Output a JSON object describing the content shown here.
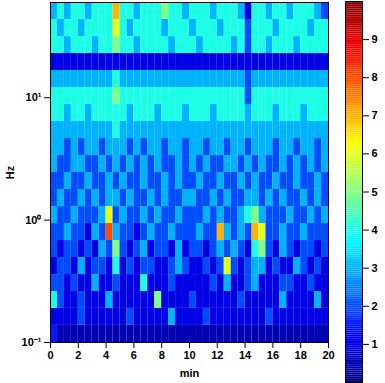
{
  "chart_data": {
    "type": "heatmap",
    "x_label": "min",
    "y_label": "Hz",
    "log": "y",
    "color": "jet",
    "xlim": [
      0,
      20
    ],
    "xticks": [
      0,
      2,
      4,
      6,
      8,
      10,
      12,
      14,
      16,
      18,
      20
    ],
    "ylim": [
      0.1,
      60
    ],
    "yticks": [
      {
        "value": 0.1,
        "label": "10⁻¹"
      },
      {
        "value": 1,
        "label": "10⁰"
      },
      {
        "value": 10,
        "label": "10¹"
      }
    ],
    "x_edges": [
      0,
      0.5,
      1,
      1.5,
      2,
      2.5,
      3,
      3.5,
      4,
      4.5,
      5,
      5.5,
      6,
      6.5,
      7,
      7.5,
      8,
      8.5,
      9,
      9.5,
      10,
      10.5,
      11,
      11.5,
      12,
      12.5,
      13,
      13.5,
      14,
      14.5,
      15,
      15.5,
      16,
      16.5,
      17,
      17.5,
      18,
      18.5,
      19,
      19.5,
      20
    ],
    "y_edges": [
      0.1,
      0.138,
      0.19,
      0.261,
      0.359,
      0.495,
      0.681,
      0.938,
      1.29,
      1.78,
      2.45,
      3.37,
      4.64,
      6.39,
      8.8,
      12.1,
      16.7,
      23.0,
      31.6,
      43.6,
      60
    ],
    "cells": [
      [
        1.5,
        0.5,
        0.5,
        0.5,
        0.5,
        0.5,
        0.5,
        0.5,
        0.5,
        0.5,
        0.5,
        0.5,
        0.5,
        0.5,
        0.5,
        0.5,
        0.5,
        0.5,
        0.5,
        0.5,
        0.5,
        0.5,
        0.5,
        0.5,
        0.5,
        0.5,
        0.5,
        0.5,
        0.5,
        0.5,
        0.5,
        0.5,
        0.5,
        0.5,
        0.5,
        0.5,
        0.5,
        0.5,
        0.5,
        0.5
      ],
      [
        1,
        1,
        1,
        1,
        2,
        1,
        1,
        1,
        1,
        1,
        1,
        2,
        1,
        1,
        1,
        1,
        1,
        3,
        1,
        1,
        1,
        1,
        2,
        1,
        1,
        1,
        1,
        1,
        1,
        1,
        1,
        2,
        1,
        1,
        1,
        1,
        1,
        1,
        1,
        1
      ],
      [
        4,
        2,
        1,
        1,
        2,
        1,
        1,
        1,
        3,
        1,
        1,
        1,
        1,
        1,
        1,
        5,
        1,
        1,
        1,
        1,
        2,
        1,
        1,
        1,
        1,
        1,
        1,
        2,
        1,
        1,
        1,
        1,
        1,
        3,
        1,
        1,
        1,
        1,
        3,
        1
      ],
      [
        2,
        2,
        1,
        2,
        1,
        1,
        3,
        1,
        1,
        2,
        1,
        1,
        1,
        4,
        1,
        1,
        1,
        2,
        1,
        1,
        1,
        1,
        1,
        2,
        1,
        3,
        1,
        1,
        2,
        3,
        1,
        1,
        1,
        2,
        2,
        1,
        1,
        2,
        1,
        1
      ],
      [
        1,
        2,
        2,
        1,
        3,
        1,
        2,
        2,
        1,
        4,
        1,
        2,
        1,
        2,
        2,
        1,
        1,
        2,
        3,
        2,
        1,
        1,
        2,
        1,
        2,
        6,
        2,
        1,
        2,
        3,
        3,
        1,
        2,
        1,
        1,
        3,
        2,
        1,
        2,
        1
      ],
      [
        2,
        1,
        2,
        2,
        1,
        2,
        1,
        3,
        2,
        5,
        2,
        1,
        2,
        3,
        1,
        2,
        2,
        1,
        3,
        1,
        2,
        2,
        1,
        2,
        3,
        2,
        3,
        2,
        1,
        4,
        5,
        2,
        1,
        3,
        2,
        1,
        2,
        2,
        1,
        2
      ],
      [
        2,
        2,
        3,
        2,
        2,
        1,
        3,
        2,
        8,
        3,
        2,
        2,
        1,
        2,
        3,
        2,
        2,
        3,
        2,
        2,
        2,
        3,
        2,
        2,
        7,
        3,
        2,
        3,
        2,
        7,
        6,
        2,
        2,
        3,
        2,
        2,
        3,
        2,
        2,
        2
      ],
      [
        3,
        2,
        2,
        3,
        2,
        2,
        2,
        3,
        6,
        2,
        3,
        2,
        2,
        3,
        2,
        3,
        2,
        2,
        3,
        2,
        2,
        2,
        3,
        2,
        3,
        2,
        2,
        3,
        4,
        5,
        3,
        2,
        2,
        2,
        3,
        2,
        2,
        3,
        2,
        3
      ],
      [
        2,
        3,
        2,
        2,
        3,
        2,
        3,
        2,
        3,
        3,
        2,
        3,
        2,
        2,
        3,
        2,
        3,
        2,
        2,
        3,
        3,
        2,
        2,
        3,
        2,
        3,
        2,
        2,
        3,
        3,
        2,
        3,
        2,
        3,
        2,
        2,
        3,
        2,
        3,
        2
      ],
      [
        2,
        2,
        3,
        2,
        2,
        3,
        2,
        2,
        3,
        2,
        3,
        2,
        2,
        3,
        2,
        2,
        3,
        2,
        3,
        2,
        2,
        3,
        2,
        2,
        3,
        2,
        2,
        3,
        2,
        3,
        2,
        2,
        3,
        2,
        2,
        3,
        2,
        2,
        3,
        2
      ],
      [
        3,
        2,
        2,
        3,
        3,
        2,
        2,
        3,
        2,
        3,
        2,
        3,
        2,
        3,
        2,
        3,
        2,
        2,
        3,
        2,
        3,
        2,
        3,
        2,
        2,
        3,
        3,
        2,
        3,
        2,
        3,
        2,
        2,
        3,
        2,
        3,
        2,
        3,
        2,
        3
      ],
      [
        3,
        3,
        2,
        3,
        2,
        3,
        3,
        2,
        3,
        3,
        3,
        2,
        3,
        2,
        3,
        3,
        2,
        3,
        3,
        2,
        3,
        3,
        2,
        3,
        3,
        2,
        3,
        3,
        2,
        3,
        3,
        3,
        2,
        3,
        3,
        2,
        3,
        3,
        2,
        3
      ],
      [
        3,
        3,
        3,
        3,
        3,
        3,
        3,
        3,
        3,
        4,
        3,
        3,
        3,
        3,
        3,
        3,
        3,
        3,
        3,
        3,
        3,
        3,
        3,
        3,
        3,
        3,
        3,
        3,
        3,
        3,
        3,
        3,
        3,
        3,
        3,
        3,
        3,
        3,
        3,
        3
      ],
      [
        4,
        4,
        3,
        4,
        4,
        3,
        4,
        4,
        4,
        4,
        4,
        3,
        4,
        4,
        4,
        3,
        4,
        4,
        4,
        3,
        4,
        4,
        4,
        3,
        4,
        4,
        4,
        4,
        3,
        4,
        4,
        4,
        3,
        4,
        4,
        4,
        3,
        4,
        4,
        4
      ],
      [
        4,
        4,
        4,
        4,
        4,
        4,
        4,
        4,
        4,
        5,
        4,
        4,
        4,
        4,
        4,
        4,
        4,
        4,
        4,
        4,
        4,
        4,
        4,
        4,
        4,
        4,
        4,
        4,
        2,
        4,
        4,
        4,
        4,
        4,
        4,
        4,
        4,
        4,
        4,
        4
      ],
      [
        3,
        3,
        3,
        3,
        3,
        3,
        3,
        3,
        3,
        4,
        3,
        3,
        3,
        3,
        3,
        3,
        3,
        3,
        3,
        3,
        3,
        3,
        3,
        3,
        3,
        3,
        3,
        3,
        2,
        3,
        3,
        3,
        3,
        3,
        3,
        3,
        3,
        3,
        3,
        3
      ],
      [
        1,
        1,
        1,
        1,
        1,
        1,
        1,
        1,
        1,
        1,
        1,
        1,
        1,
        1,
        1,
        1,
        1,
        1,
        1,
        1,
        1,
        1,
        1,
        1,
        1,
        1,
        1,
        1,
        1,
        1,
        1,
        1,
        1,
        1,
        1,
        1,
        1,
        1,
        1,
        1
      ],
      [
        4,
        4,
        3,
        4,
        4,
        4,
        3,
        4,
        4,
        5,
        4,
        4,
        3,
        4,
        4,
        4,
        4,
        3,
        4,
        4,
        4,
        3,
        4,
        4,
        4,
        4,
        3,
        4,
        2,
        4,
        4,
        3,
        4,
        4,
        4,
        3,
        4,
        4,
        4,
        4
      ],
      [
        4,
        3,
        4,
        4,
        3,
        4,
        4,
        4,
        4,
        6,
        4,
        3,
        4,
        4,
        4,
        4,
        3,
        4,
        4,
        4,
        3,
        4,
        4,
        4,
        3,
        4,
        4,
        4,
        2,
        4,
        4,
        4,
        3,
        4,
        4,
        4,
        4,
        3,
        4,
        4
      ],
      [
        3,
        4,
        3,
        4,
        4,
        3,
        4,
        4,
        4,
        7,
        4,
        4,
        3,
        4,
        4,
        4,
        5,
        4,
        4,
        3,
        4,
        4,
        4,
        3,
        4,
        4,
        4,
        3,
        1,
        4,
        4,
        3,
        4,
        4,
        3,
        4,
        4,
        4,
        3,
        2
      ]
    ],
    "colorbar_range": [
      0,
      10
    ],
    "colorbar_ticks": [
      1,
      2,
      3,
      4,
      5,
      6,
      7,
      8,
      9
    ]
  }
}
